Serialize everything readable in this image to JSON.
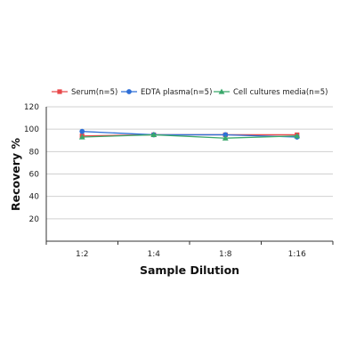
{
  "chart_data": {
    "type": "line",
    "title": "",
    "xlabel": "Sample Dilution",
    "ylabel": "Recovery %",
    "categories": [
      "1:2",
      "1:4",
      "1:8",
      "1:16"
    ],
    "ylim": [
      0,
      120
    ],
    "yticks": [
      20,
      40,
      60,
      80,
      100,
      120
    ],
    "grid": "horizontal",
    "legend_position": "top",
    "series": [
      {
        "name": "Serum(n=5)",
        "values": [
          94,
          95,
          95,
          95
        ],
        "color": "#e8484a",
        "marker": "square"
      },
      {
        "name": "EDTA plasma(n=5)",
        "values": [
          98,
          95,
          95,
          93
        ],
        "color": "#2f6fd6",
        "marker": "circle"
      },
      {
        "name": "Cell cultures media(n=5)",
        "values": [
          93,
          95,
          92,
          94
        ],
        "color": "#3aa86b",
        "marker": "triangle"
      }
    ]
  }
}
